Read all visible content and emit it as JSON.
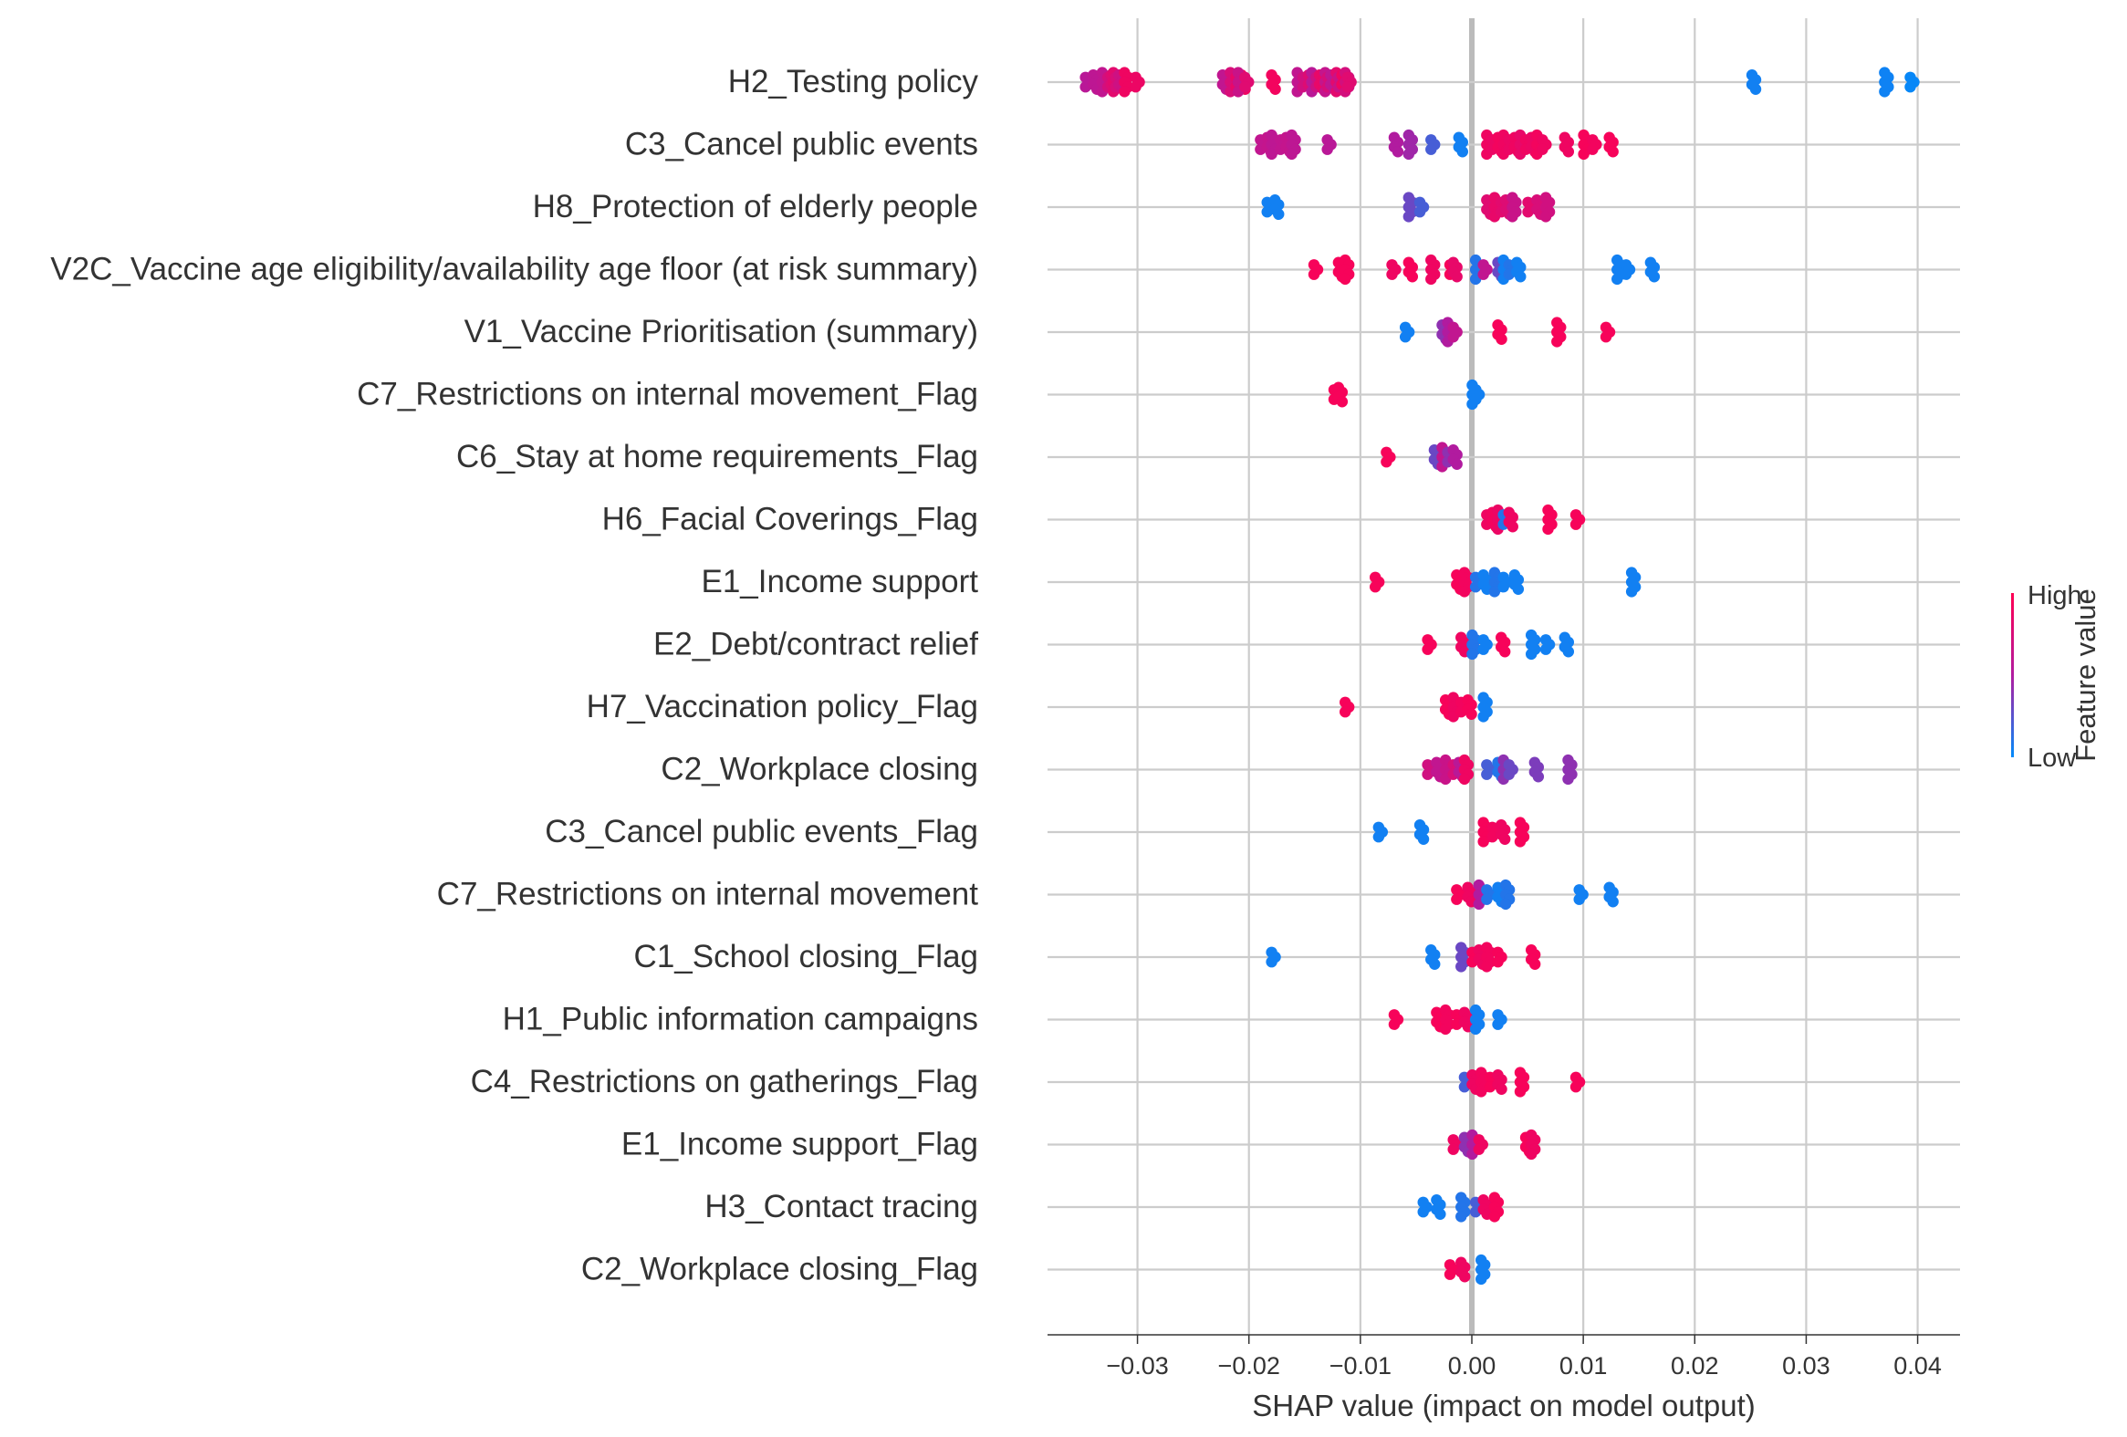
{
  "chart_data": {
    "type": "scatter",
    "subtype": "shap-beeswarm",
    "title": "",
    "xlabel": "SHAP value (impact on model output)",
    "ylabel": "",
    "xlim": [
      -0.0375,
      0.0435
    ],
    "xticks": [
      -0.03,
      -0.02,
      -0.01,
      0.0,
      0.01,
      0.02,
      0.03,
      0.04
    ],
    "xtick_labels": [
      "−0.03",
      "−0.02",
      "−0.01",
      "0.00",
      "0.01",
      "0.02",
      "0.03",
      "0.04"
    ],
    "grid": true,
    "zero_line": true,
    "colorbar": {
      "label": "Feature value",
      "high_label": "High",
      "low_label": "Low",
      "high_color": "#ff0052",
      "low_color": "#008bfb",
      "placement": "right"
    },
    "features": [
      {
        "name": "H2_Testing policy",
        "points": [
          [
            -0.0345,
            0.55
          ],
          [
            -0.0338,
            0.58
          ],
          [
            -0.033,
            0.6
          ],
          [
            -0.0325,
            0.72
          ],
          [
            -0.0322,
            0.78
          ],
          [
            -0.032,
            0.82
          ],
          [
            -0.0318,
            0.75
          ],
          [
            -0.0315,
            0.68
          ],
          [
            -0.031,
            0.9
          ],
          [
            -0.03,
            0.88
          ],
          [
            -0.0222,
            0.6
          ],
          [
            -0.0215,
            0.75
          ],
          [
            -0.021,
            0.85
          ],
          [
            -0.0205,
            0.9
          ],
          [
            -0.0208,
            0.65
          ],
          [
            -0.0202,
            0.8
          ],
          [
            -0.0178,
            0.92
          ],
          [
            -0.0155,
            0.6
          ],
          [
            -0.015,
            0.7
          ],
          [
            -0.0145,
            0.78
          ],
          [
            -0.0142,
            0.55
          ],
          [
            -0.0138,
            0.68
          ],
          [
            -0.0135,
            0.85
          ],
          [
            -0.013,
            0.62
          ],
          [
            -0.0128,
            0.74
          ],
          [
            -0.0125,
            0.58
          ],
          [
            -0.012,
            0.82
          ],
          [
            -0.0118,
            0.66
          ],
          [
            -0.0115,
            0.9
          ],
          [
            -0.0112,
            0.72
          ],
          [
            -0.011,
            0.8
          ],
          [
            0.0253,
            0.05
          ],
          [
            0.0372,
            0.04
          ],
          [
            0.0395,
            0.02
          ]
        ]
      },
      {
        "name": "C3_Cancel public events",
        "points": [
          [
            -0.0188,
            0.6
          ],
          [
            -0.0182,
            0.62
          ],
          [
            -0.0178,
            0.58
          ],
          [
            -0.017,
            0.6
          ],
          [
            -0.0165,
            0.62
          ],
          [
            -0.016,
            0.58
          ],
          [
            -0.0128,
            0.55
          ],
          [
            -0.0068,
            0.5
          ],
          [
            -0.0055,
            0.45
          ],
          [
            -0.0035,
            0.2
          ],
          [
            -0.001,
            0.05
          ],
          [
            0.0015,
            0.9
          ],
          [
            0.002,
            0.88
          ],
          [
            0.0025,
            0.92
          ],
          [
            0.003,
            0.9
          ],
          [
            0.0035,
            0.88
          ],
          [
            0.004,
            0.9
          ],
          [
            0.0045,
            0.85
          ],
          [
            0.005,
            0.9
          ],
          [
            0.0055,
            0.88
          ],
          [
            0.006,
            0.92
          ],
          [
            0.0065,
            0.9
          ],
          [
            0.0085,
            0.9
          ],
          [
            0.0102,
            0.95
          ],
          [
            0.011,
            0.92
          ],
          [
            0.0125,
            0.95
          ]
        ]
      },
      {
        "name": "H8_Protection of elderly people",
        "points": [
          [
            -0.0182,
            0.05
          ],
          [
            -0.0175,
            0.05
          ],
          [
            -0.0055,
            0.3
          ],
          [
            -0.0045,
            0.2
          ],
          [
            0.0015,
            0.8
          ],
          [
            0.0022,
            0.85
          ],
          [
            0.0028,
            0.82
          ],
          [
            0.0032,
            0.78
          ],
          [
            0.0038,
            0.65
          ],
          [
            0.0052,
            0.82
          ],
          [
            0.006,
            0.75
          ],
          [
            0.0068,
            0.7
          ]
        ]
      },
      {
        "name": "V2C_Vaccine age eligibility/availability age floor (at risk summary)",
        "points": [
          [
            -0.014,
            0.95
          ],
          [
            -0.0118,
            0.95
          ],
          [
            -0.0112,
            0.95
          ],
          [
            -0.007,
            0.9
          ],
          [
            -0.0055,
            0.95
          ],
          [
            -0.0035,
            0.9
          ],
          [
            -0.0018,
            0.95
          ],
          [
            -0.0015,
            0.85
          ],
          [
            0.0005,
            0.1
          ],
          [
            0.0012,
            0.6
          ],
          [
            0.0025,
            0.3
          ],
          [
            0.003,
            0.05
          ],
          [
            0.0035,
            0.1
          ],
          [
            0.0042,
            0.05
          ],
          [
            0.0132,
            0.05
          ],
          [
            0.014,
            0.05
          ],
          [
            0.0162,
            0.05
          ]
        ]
      },
      {
        "name": "V1_Vaccine Prioritisation (summary)",
        "points": [
          [
            -0.0058,
            0.05
          ],
          [
            -0.0025,
            0.4
          ],
          [
            -0.002,
            0.5
          ],
          [
            -0.0015,
            0.6
          ],
          [
            0.0025,
            0.95
          ],
          [
            0.0078,
            0.95
          ],
          [
            0.0122,
            0.95
          ]
        ]
      },
      {
        "name": "C7_Restrictions on internal movement_Flag",
        "points": [
          [
            -0.0122,
            0.95
          ],
          [
            -0.0118,
            0.95
          ],
          [
            0.0002,
            0.05
          ],
          [
            0.0005,
            0.05
          ]
        ]
      },
      {
        "name": "C6_Stay at home requirements_Flag",
        "points": [
          [
            -0.0075,
            0.95
          ],
          [
            -0.0032,
            0.3
          ],
          [
            -0.0025,
            0.6
          ],
          [
            -0.002,
            0.4
          ],
          [
            -0.0015,
            0.5
          ]
        ]
      },
      {
        "name": "H6_Facial Coverings_Flag",
        "points": [
          [
            0.0015,
            0.9
          ],
          [
            0.002,
            0.92
          ],
          [
            0.0025,
            0.88
          ],
          [
            0.003,
            0.1
          ],
          [
            0.0035,
            0.9
          ],
          [
            0.007,
            0.95
          ],
          [
            0.0095,
            0.95
          ]
        ]
      },
      {
        "name": "E1_Income support",
        "points": [
          [
            -0.0085,
            0.95
          ],
          [
            -0.0012,
            0.95
          ],
          [
            -0.0005,
            0.92
          ],
          [
            0.0005,
            0.1
          ],
          [
            0.0012,
            0.05
          ],
          [
            0.0022,
            0.1
          ],
          [
            0.003,
            0.05
          ],
          [
            0.004,
            0.05
          ],
          [
            0.0145,
            0.05
          ]
        ]
      },
      {
        "name": "E2_Debt/contract relief",
        "points": [
          [
            -0.0038,
            0.95
          ],
          [
            -0.0008,
            0.9
          ],
          [
            0.0002,
            0.1
          ],
          [
            0.0012,
            0.05
          ],
          [
            0.0028,
            0.95
          ],
          [
            0.0055,
            0.05
          ],
          [
            0.0068,
            0.05
          ],
          [
            0.0085,
            0.05
          ]
        ]
      },
      {
        "name": "H7_Vaccination policy_Flag",
        "points": [
          [
            -0.0112,
            0.95
          ],
          [
            -0.0022,
            0.95
          ],
          [
            -0.0015,
            0.9
          ],
          [
            -0.0008,
            0.92
          ],
          [
            -0.0002,
            0.95
          ],
          [
            0.0012,
            0.05
          ]
        ]
      },
      {
        "name": "C2_Workplace closing",
        "points": [
          [
            -0.0038,
            0.7
          ],
          [
            -0.003,
            0.6
          ],
          [
            -0.0022,
            0.65
          ],
          [
            -0.0015,
            0.75
          ],
          [
            -0.001,
            0.55
          ],
          [
            -0.0005,
            0.9
          ],
          [
            0.0015,
            0.2
          ],
          [
            0.0025,
            0.1
          ],
          [
            0.003,
            0.4
          ],
          [
            0.0035,
            0.3
          ],
          [
            0.0058,
            0.35
          ],
          [
            0.0088,
            0.4
          ]
        ]
      },
      {
        "name": "C3_Cancel public events_Flag",
        "points": [
          [
            -0.0082,
            0.05
          ],
          [
            -0.0045,
            0.05
          ],
          [
            0.0012,
            0.95
          ],
          [
            0.002,
            0.92
          ],
          [
            0.0028,
            0.9
          ],
          [
            0.0045,
            0.95
          ]
        ]
      },
      {
        "name": "C7_Restrictions on internal movement",
        "points": [
          [
            -0.0012,
            0.95
          ],
          [
            -0.0002,
            0.9
          ],
          [
            0.0008,
            0.5
          ],
          [
            0.0015,
            0.1
          ],
          [
            0.0025,
            0.05
          ],
          [
            0.0032,
            0.1
          ],
          [
            0.0098,
            0.05
          ],
          [
            0.0125,
            0.05
          ]
        ]
      },
      {
        "name": "C1_School closing_Flag",
        "points": [
          [
            -0.0178,
            0.05
          ],
          [
            -0.0035,
            0.05
          ],
          [
            -0.0008,
            0.3
          ],
          [
            0.0002,
            0.95
          ],
          [
            0.0008,
            0.9
          ],
          [
            0.0015,
            0.92
          ],
          [
            0.0025,
            0.95
          ],
          [
            0.0055,
            0.95
          ]
        ]
      },
      {
        "name": "H1_Public information campaigns",
        "points": [
          [
            -0.0068,
            0.95
          ],
          [
            -0.003,
            0.95
          ],
          [
            -0.0022,
            0.92
          ],
          [
            -0.0012,
            0.95
          ],
          [
            -0.0005,
            0.9
          ],
          [
            0.0005,
            0.05
          ],
          [
            0.0025,
            0.05
          ]
        ]
      },
      {
        "name": "C4_Restrictions on gatherings_Flag",
        "points": [
          [
            -0.0005,
            0.2
          ],
          [
            0.0002,
            0.9
          ],
          [
            0.001,
            0.92
          ],
          [
            0.0018,
            0.95
          ],
          [
            0.0025,
            0.9
          ],
          [
            0.0045,
            0.95
          ],
          [
            0.0095,
            0.95
          ]
        ]
      },
      {
        "name": "E1_Income support_Flag",
        "points": [
          [
            -0.0015,
            0.9
          ],
          [
            -0.0005,
            0.4
          ],
          [
            0.0002,
            0.5
          ],
          [
            0.0008,
            0.9
          ],
          [
            0.005,
            0.95
          ],
          [
            0.0055,
            0.9
          ]
        ]
      },
      {
        "name": "H3_Contact tracing",
        "points": [
          [
            -0.0042,
            0.05
          ],
          [
            -0.003,
            0.05
          ],
          [
            -0.0008,
            0.1
          ],
          [
            0.0005,
            0.2
          ],
          [
            0.0012,
            0.9
          ],
          [
            0.0022,
            0.95
          ]
        ]
      },
      {
        "name": "C2_Workplace closing_Flag",
        "points": [
          [
            -0.0018,
            0.95
          ],
          [
            -0.0008,
            0.9
          ],
          [
            0.001,
            0.05
          ]
        ]
      }
    ]
  }
}
